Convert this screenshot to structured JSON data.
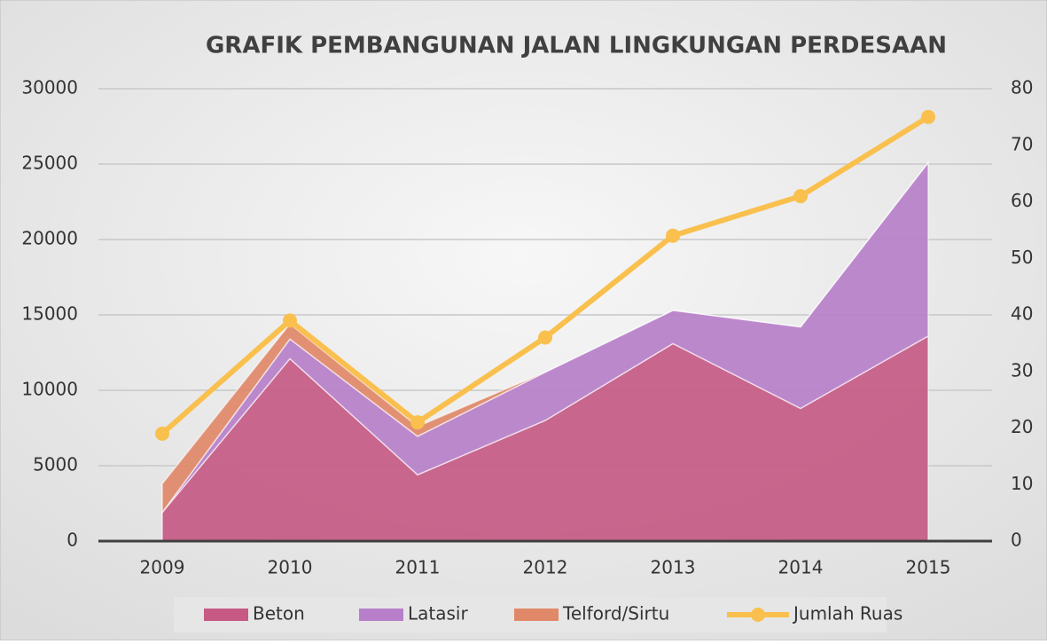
{
  "chart_data": {
    "type": "area",
    "stacked": true,
    "title": "GRAFIK PEMBANGUNAN JALAN LINGKUNGAN PERDESAAN",
    "categories": [
      "2009",
      "2010",
      "2011",
      "2012",
      "2013",
      "2014",
      "2015"
    ],
    "series": [
      {
        "name": "Beton",
        "color": "#c65a84",
        "values": [
          1900,
          12100,
          4400,
          8000,
          13100,
          8800,
          13600
        ]
      },
      {
        "name": "Latasir",
        "color": "#b77fc9",
        "values": [
          0,
          1300,
          2550,
          3200,
          2200,
          5400,
          11500
        ]
      },
      {
        "name": "Telford/Sirtu",
        "color": "#e08868",
        "values": [
          1900,
          1000,
          650,
          0,
          0,
          0,
          0
        ]
      },
      {
        "name": "Jumlah Ruas",
        "type": "line",
        "axis": "y2",
        "color": "#f9c04e",
        "values": [
          19,
          39,
          21,
          36,
          54,
          61,
          75
        ]
      }
    ],
    "ylim": [
      0,
      30000
    ],
    "yticks": [
      0,
      5000,
      10000,
      15000,
      20000,
      25000,
      30000
    ],
    "y2lim": [
      0,
      80
    ],
    "y2ticks": [
      0,
      10,
      20,
      30,
      40,
      50,
      60,
      70,
      80
    ],
    "grid": true,
    "legend": "bottom"
  }
}
